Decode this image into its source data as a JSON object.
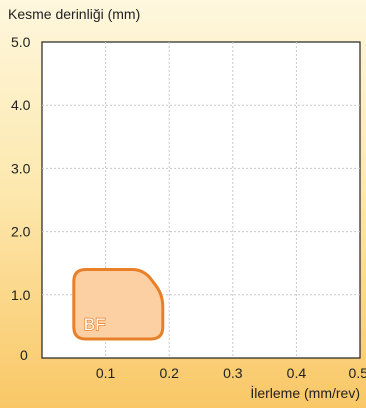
{
  "chart_data": {
    "type": "area",
    "ylabel": "Kesme derinliği (mm)",
    "xlabel": "İlerleme (mm/rev)",
    "x_ticks": [
      {
        "value": 0.1,
        "label": "0.1"
      },
      {
        "value": 0.2,
        "label": "0.2"
      },
      {
        "value": 0.3,
        "label": "0.3"
      },
      {
        "value": 0.4,
        "label": "0.4"
      },
      {
        "value": 0.5,
        "label": "0.5"
      }
    ],
    "y_ticks": [
      {
        "value": 0,
        "label": "0"
      },
      {
        "value": 1.0,
        "label": "1.0"
      },
      {
        "value": 2.0,
        "label": "2.0"
      },
      {
        "value": 3.0,
        "label": "3.0"
      },
      {
        "value": 4.0,
        "label": "4.0"
      },
      {
        "value": 5.0,
        "label": "5.0"
      }
    ],
    "xlim": [
      0,
      0.5
    ],
    "ylim": [
      0,
      5.0
    ],
    "grid": true,
    "region": {
      "label": "BF",
      "polygon": [
        [
          0.05,
          1.4
        ],
        [
          0.16,
          1.4
        ],
        [
          0.19,
          1.0
        ],
        [
          0.19,
          0.3
        ],
        [
          0.05,
          0.3
        ]
      ],
      "fill": "#fcd0a2",
      "stroke": "#e8802a"
    }
  }
}
